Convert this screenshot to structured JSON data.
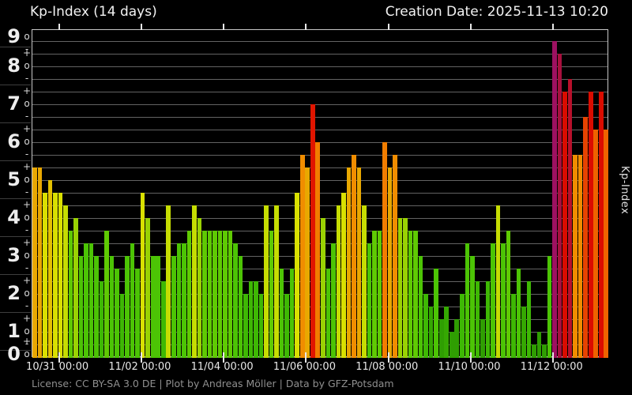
{
  "header": {
    "title": "Kp-Index (14 days)",
    "creation_date": "Creation Date: 2025-11-13 10:20"
  },
  "y_axis": {
    "title": "Kp-Index",
    "majors": [
      "0",
      "1",
      "2",
      "3",
      "4",
      "5",
      "6",
      "7",
      "8",
      "9"
    ],
    "sub_plus": "+",
    "sub_o": "o",
    "sub_minus": "-"
  },
  "footer": {
    "text": "License: CC BY-SA 3.0 DE | Plot by Andreas Möller | Data by GFZ-Potsdam"
  },
  "chart_data": {
    "type": "bar",
    "title": "Kp-Index (14 days)",
    "ylabel": "Kp-Index",
    "ylim": [
      0,
      9
    ],
    "grid": "horizontal lines every 1/3 Kp unit",
    "legend": "none",
    "bin_hours": 3,
    "x_ticks": [
      "10/31 00:00",
      "11/02 00:00",
      "11/04 00:00",
      "11/06 00:00",
      "11/08 00:00",
      "11/10 00:00",
      "11/12 00:00"
    ],
    "values": [
      5.33,
      5.33,
      4.67,
      5.0,
      4.67,
      4.67,
      4.33,
      3.67,
      4.0,
      3.0,
      3.33,
      3.33,
      3.0,
      2.33,
      3.67,
      3.0,
      2.67,
      2.0,
      3.0,
      3.33,
      2.67,
      4.67,
      4.0,
      3.0,
      3.0,
      2.33,
      4.33,
      3.0,
      3.33,
      3.33,
      3.67,
      4.33,
      4.0,
      3.67,
      3.67,
      3.67,
      3.67,
      3.67,
      3.67,
      3.33,
      3.0,
      2.0,
      2.33,
      2.33,
      2.0,
      4.33,
      3.67,
      4.33,
      2.67,
      2.0,
      2.67,
      4.67,
      5.67,
      5.33,
      7.0,
      6.0,
      4.0,
      2.67,
      3.33,
      4.33,
      4.67,
      5.33,
      5.67,
      5.33,
      4.33,
      3.33,
      3.67,
      3.67,
      6.0,
      5.33,
      5.67,
      4.0,
      4.0,
      3.67,
      3.67,
      3.0,
      2.0,
      1.67,
      2.67,
      1.33,
      1.67,
      1.0,
      1.33,
      2.0,
      3.33,
      3.0,
      2.33,
      1.33,
      2.33,
      3.33,
      4.33,
      3.33,
      3.67,
      2.0,
      2.67,
      1.67,
      2.33,
      0.67,
      1.0,
      0.67,
      3.0,
      8.67,
      8.33,
      7.33,
      7.67,
      5.67,
      5.67,
      6.67,
      7.33,
      6.33,
      7.33,
      6.33
    ],
    "palette": {
      "0.33": "#2f9e02",
      "0.67": "#2f9e02",
      "1.00": "#2f9e02",
      "1.33": "#2f9e02",
      "1.67": "#35a802",
      "2.00": "#3eb804",
      "2.33": "#3eb804",
      "2.67": "#4cc405",
      "3.00": "#4cc405",
      "3.33": "#4cc405",
      "3.67": "#5fca03",
      "4.00": "#9ad203",
      "4.33": "#c6dd02",
      "4.67": "#d9e001",
      "5.00": "#e4c101",
      "5.33": "#e9a801",
      "5.67": "#f08d00",
      "6.00": "#f17d00",
      "6.33": "#ee6300",
      "6.67": "#e74301",
      "7.00": "#e01500",
      "7.33": "#da0c00",
      "7.67": "#b8102b",
      "8.00": "#b11034",
      "8.33": "#a80f3e",
      "8.67": "#9d1161"
    }
  }
}
